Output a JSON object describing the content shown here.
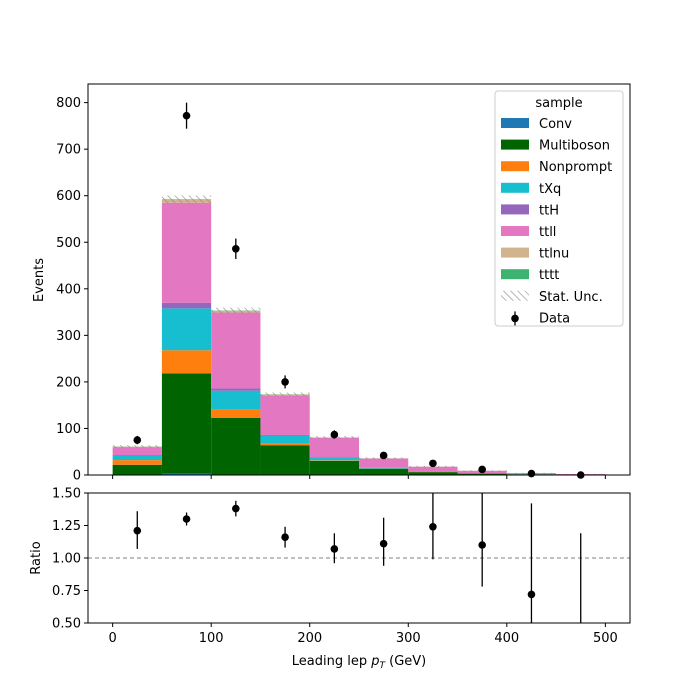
{
  "chart_data": [
    {
      "type": "bar",
      "stacked": true,
      "histogram": true,
      "bin_edges": [
        0,
        50,
        100,
        150,
        200,
        250,
        300,
        350,
        400,
        450,
        500
      ],
      "ylabel": "Events",
      "ylim": [
        0,
        840
      ],
      "yticks": [
        0,
        100,
        200,
        300,
        400,
        500,
        600,
        700,
        800
      ],
      "legend": {
        "title": "sample",
        "placement": "top-right",
        "entries": [
          "Conv",
          "Multiboson",
          "Nonprompt",
          "tXq",
          "ttH",
          "ttll",
          "ttlnu",
          "tttt",
          "Stat. Unc.",
          "Data"
        ]
      },
      "series": [
        {
          "name": "Conv",
          "color": "#1f77b4",
          "values": [
            1,
            3,
            1,
            1,
            0.5,
            0.3,
            0.2,
            0.1,
            0.1,
            0.05
          ]
        },
        {
          "name": "Multiboson",
          "color": "#006400",
          "values": [
            21,
            215,
            122,
            63,
            30,
            13,
            6,
            3,
            1.5,
            0.8
          ]
        },
        {
          "name": "Nonprompt",
          "color": "#ff7f0e",
          "values": [
            10,
            50,
            18,
            3,
            1,
            0.5,
            0.3,
            0.2,
            0.1,
            0.05
          ]
        },
        {
          "name": "tXq",
          "color": "#17becf",
          "values": [
            10,
            90,
            40,
            17,
            5,
            2,
            1,
            0.5,
            0.3,
            0.1
          ]
        },
        {
          "name": "ttH",
          "color": "#9467bd",
          "values": [
            1,
            12,
            5,
            2,
            1,
            0.5,
            0.3,
            0.2,
            0.1,
            0.05
          ]
        },
        {
          "name": "ttll",
          "color": "#e377c2",
          "values": [
            17,
            215,
            163,
            85,
            42,
            19,
            10,
            5,
            2,
            1
          ]
        },
        {
          "name": "ttlnu",
          "color": "#d2b48c",
          "values": [
            1,
            7,
            4,
            2,
            1,
            0.5,
            0.3,
            0.2,
            0.1,
            0.05
          ]
        },
        {
          "name": "tttt",
          "color": "#3cb371",
          "values": [
            0.2,
            0.5,
            0.5,
            0.3,
            0.2,
            0.1,
            0.1,
            0.05,
            0.05,
            0.02
          ]
        }
      ],
      "stat_unc": [
        3,
        8,
        6,
        4,
        3,
        2,
        1.5,
        1,
        0.5,
        0.3
      ],
      "data": {
        "name": "Data",
        "x": [
          25,
          75,
          125,
          175,
          225,
          275,
          325,
          375,
          425,
          475
        ],
        "y": [
          75,
          772,
          486,
          200,
          87,
          42,
          25,
          12,
          3,
          0
        ],
        "yerr": [
          9,
          28,
          22,
          14,
          9,
          6.5,
          5,
          3.5,
          1.7,
          0
        ]
      }
    },
    {
      "type": "scatter",
      "xlabel": "Leading lep $p_T$ (GeV)",
      "ylabel": "Ratio",
      "xlim": [
        -25,
        525
      ],
      "ylim": [
        0.5,
        1.5
      ],
      "xticks": [
        0,
        100,
        200,
        300,
        400,
        500
      ],
      "yticks": [
        "0.50",
        "0.75",
        "1.00",
        "1.25",
        "1.50"
      ],
      "reference_line": 1.0,
      "points": {
        "x": [
          25,
          75,
          125,
          175,
          225,
          275,
          325,
          375,
          425,
          475
        ],
        "y": [
          1.21,
          1.3,
          1.38,
          1.16,
          1.07,
          1.11,
          1.24,
          1.1,
          0.72,
          null
        ],
        "yerr_low": [
          0.14,
          0.05,
          0.06,
          0.08,
          0.11,
          0.17,
          0.25,
          0.32,
          0.72,
          0
        ],
        "yerr_high": [
          0.15,
          0.05,
          0.06,
          0.08,
          0.12,
          0.2,
          0.3,
          0.4,
          0.7,
          1.19
        ]
      }
    }
  ]
}
